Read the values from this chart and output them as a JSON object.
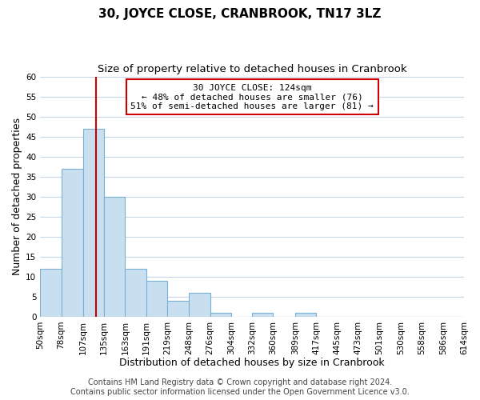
{
  "title": "30, JOYCE CLOSE, CRANBROOK, TN17 3LZ",
  "subtitle": "Size of property relative to detached houses in Cranbrook",
  "xlabel": "Distribution of detached houses by size in Cranbrook",
  "ylabel": "Number of detached properties",
  "bar_color": "#c8dff0",
  "bar_edge_color": "#7aafd4",
  "bin_labels": [
    "50sqm",
    "78sqm",
    "107sqm",
    "135sqm",
    "163sqm",
    "191sqm",
    "219sqm",
    "248sqm",
    "276sqm",
    "304sqm",
    "332sqm",
    "360sqm",
    "389sqm",
    "417sqm",
    "445sqm",
    "473sqm",
    "501sqm",
    "530sqm",
    "558sqm",
    "586sqm",
    "614sqm"
  ],
  "bin_edges": [
    50,
    78,
    107,
    135,
    163,
    191,
    219,
    248,
    276,
    304,
    332,
    360,
    389,
    417,
    445,
    473,
    501,
    530,
    558,
    586,
    614
  ],
  "counts": [
    12,
    37,
    47,
    30,
    12,
    9,
    4,
    6,
    1,
    0,
    1,
    0,
    1,
    0,
    0,
    0,
    0,
    0,
    0,
    0
  ],
  "ylim": [
    0,
    60
  ],
  "yticks": [
    0,
    5,
    10,
    15,
    20,
    25,
    30,
    35,
    40,
    45,
    50,
    55,
    60
  ],
  "vline_x": 124,
  "annotation_line1": "30 JOYCE CLOSE: 124sqm",
  "annotation_line2": "← 48% of detached houses are smaller (76)",
  "annotation_line3": "51% of semi-detached houses are larger (81) →",
  "footer_line1": "Contains HM Land Registry data © Crown copyright and database right 2024.",
  "footer_line2": "Contains public sector information licensed under the Open Government Licence v3.0.",
  "background_color": "#ffffff",
  "grid_color": "#c8d4e8",
  "vline_color": "#cc0000",
  "annotation_box_color": "#ffffff",
  "annotation_box_edge_color": "#cc0000",
  "title_fontsize": 11,
  "subtitle_fontsize": 9.5,
  "axis_label_fontsize": 9,
  "tick_fontsize": 7.5,
  "annotation_fontsize": 8,
  "footer_fontsize": 7
}
